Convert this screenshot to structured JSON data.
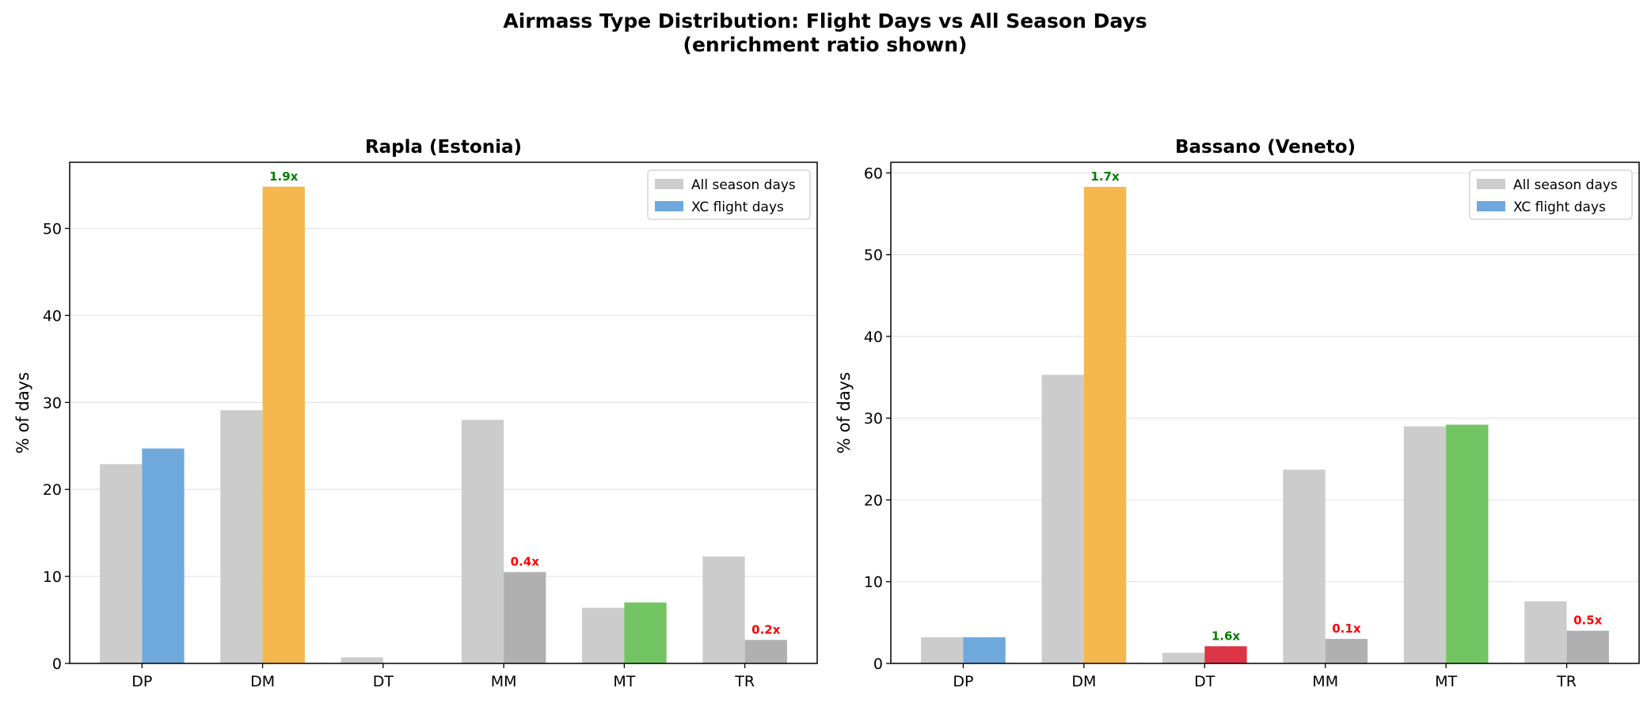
{
  "chart_data": {
    "title": "Airmass Type Distribution: Flight Days vs All Season Days",
    "subtitle": "(enrichment ratio shown)",
    "panels": [
      {
        "type": "bar",
        "title": "Rapla (Estonia)",
        "ylabel": "% of days",
        "xlabel": "",
        "categories": [
          "DP",
          "DM",
          "DT",
          "MM",
          "MT",
          "TR"
        ],
        "ylim": [
          0,
          57.6
        ],
        "yticks": [
          0,
          10,
          20,
          30,
          40,
          50
        ],
        "grid": true,
        "legend_placement": "top-right",
        "series": [
          {
            "name": "All season days",
            "values": [
              22.9,
              29.1,
              0.7,
              28.0,
              6.4,
              12.3
            ],
            "color": "#cccccc"
          },
          {
            "name": "XC flight days",
            "values": [
              24.7,
              54.8,
              0,
              10.5,
              7.0,
              2.7
            ],
            "color": "#6fa8dc",
            "bar_colors": [
              "#6fa8dc",
              "#f6b74f",
              "#dc3545",
              "#b0b0b0",
              "#72c562",
              "#b0b0b0"
            ]
          }
        ],
        "ratio_labels": [
          null,
          "1.9x",
          null,
          "0.4x",
          null,
          "0.2x"
        ],
        "ratio_colors": [
          null,
          "#008000",
          null,
          "#ff0000",
          null,
          "#ff0000"
        ]
      },
      {
        "type": "bar",
        "title": "Bassano (Veneto)",
        "ylabel": "% of days",
        "xlabel": "",
        "categories": [
          "DP",
          "DM",
          "DT",
          "MM",
          "MT",
          "TR"
        ],
        "ylim": [
          0,
          61.3
        ],
        "yticks": [
          0,
          10,
          20,
          30,
          40,
          50,
          60
        ],
        "grid": true,
        "legend_placement": "top-right",
        "series": [
          {
            "name": "All season days",
            "values": [
              3.2,
              35.3,
              1.3,
              23.7,
              29.0,
              7.6
            ],
            "color": "#cccccc"
          },
          {
            "name": "XC flight days",
            "values": [
              3.2,
              58.3,
              2.1,
              3.0,
              29.2,
              4.0
            ],
            "color": "#6fa8dc",
            "bar_colors": [
              "#6fa8dc",
              "#f6b74f",
              "#dc3545",
              "#b0b0b0",
              "#72c562",
              "#b0b0b0"
            ]
          }
        ],
        "ratio_labels": [
          null,
          "1.7x",
          "1.6x",
          "0.1x",
          null,
          "0.5x"
        ],
        "ratio_colors": [
          null,
          "#008000",
          "#008000",
          "#ff0000",
          null,
          "#ff0000"
        ]
      }
    ]
  }
}
